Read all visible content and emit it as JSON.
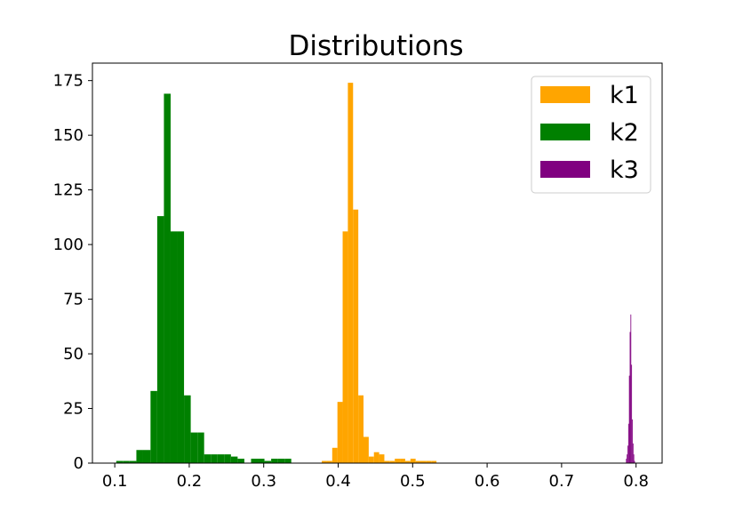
{
  "chart_data": {
    "type": "bar",
    "title": "Distributions",
    "xlabel": "",
    "ylabel": "",
    "xlim": [
      0.07,
      0.835
    ],
    "ylim": [
      0,
      183
    ],
    "xticks": [
      "0.1",
      "0.2",
      "0.3",
      "0.4",
      "0.5",
      "0.6",
      "0.7",
      "0.8"
    ],
    "yticks": [
      "0",
      "25",
      "50",
      "75",
      "100",
      "125",
      "150",
      "175"
    ],
    "grid": false,
    "legend_position": "top-right",
    "series": [
      {
        "name": "k1",
        "color": "#ffa500",
        "bins": [
          [
            0.378,
            0.385,
            1
          ],
          [
            0.385,
            0.392,
            1
          ],
          [
            0.392,
            0.399,
            7
          ],
          [
            0.399,
            0.406,
            28
          ],
          [
            0.406,
            0.413,
            106
          ],
          [
            0.413,
            0.42,
            174
          ],
          [
            0.42,
            0.427,
            116
          ],
          [
            0.427,
            0.434,
            31
          ],
          [
            0.434,
            0.441,
            12
          ],
          [
            0.441,
            0.448,
            3
          ],
          [
            0.448,
            0.455,
            5
          ],
          [
            0.455,
            0.462,
            4
          ],
          [
            0.462,
            0.469,
            1
          ],
          [
            0.469,
            0.476,
            1
          ],
          [
            0.476,
            0.483,
            2
          ],
          [
            0.483,
            0.49,
            2
          ],
          [
            0.49,
            0.497,
            1
          ],
          [
            0.497,
            0.504,
            2
          ],
          [
            0.504,
            0.511,
            1
          ],
          [
            0.511,
            0.518,
            1
          ],
          [
            0.518,
            0.525,
            1
          ],
          [
            0.525,
            0.532,
            1
          ]
        ]
      },
      {
        "name": "k2",
        "color": "#008000",
        "bins": [
          [
            0.102,
            0.111,
            1
          ],
          [
            0.111,
            0.12,
            1
          ],
          [
            0.12,
            0.129,
            1
          ],
          [
            0.129,
            0.138,
            6
          ],
          [
            0.138,
            0.148,
            6
          ],
          [
            0.148,
            0.157,
            33
          ],
          [
            0.157,
            0.166,
            113
          ],
          [
            0.166,
            0.175,
            169
          ],
          [
            0.175,
            0.184,
            106
          ],
          [
            0.184,
            0.193,
            106
          ],
          [
            0.193,
            0.202,
            31
          ],
          [
            0.202,
            0.211,
            14
          ],
          [
            0.211,
            0.22,
            14
          ],
          [
            0.22,
            0.229,
            4
          ],
          [
            0.229,
            0.238,
            4
          ],
          [
            0.238,
            0.247,
            4
          ],
          [
            0.247,
            0.256,
            4
          ],
          [
            0.256,
            0.265,
            3
          ],
          [
            0.265,
            0.274,
            2
          ],
          [
            0.283,
            0.292,
            2
          ],
          [
            0.292,
            0.301,
            2
          ],
          [
            0.301,
            0.31,
            1
          ],
          [
            0.31,
            0.319,
            2
          ],
          [
            0.319,
            0.328,
            2
          ],
          [
            0.328,
            0.337,
            2
          ]
        ]
      },
      {
        "name": "k3",
        "color": "#800080",
        "bins": [
          [
            0.7865,
            0.7875,
            2
          ],
          [
            0.7875,
            0.7885,
            4
          ],
          [
            0.7885,
            0.7895,
            8
          ],
          [
            0.7895,
            0.7905,
            18
          ],
          [
            0.7905,
            0.7915,
            40
          ],
          [
            0.7915,
            0.7925,
            60
          ],
          [
            0.7925,
            0.7935,
            68
          ],
          [
            0.7935,
            0.7945,
            45
          ],
          [
            0.7945,
            0.7955,
            20
          ],
          [
            0.7955,
            0.7965,
            9
          ],
          [
            0.7965,
            0.7975,
            4
          ],
          [
            0.7975,
            0.7985,
            1
          ]
        ]
      }
    ]
  }
}
